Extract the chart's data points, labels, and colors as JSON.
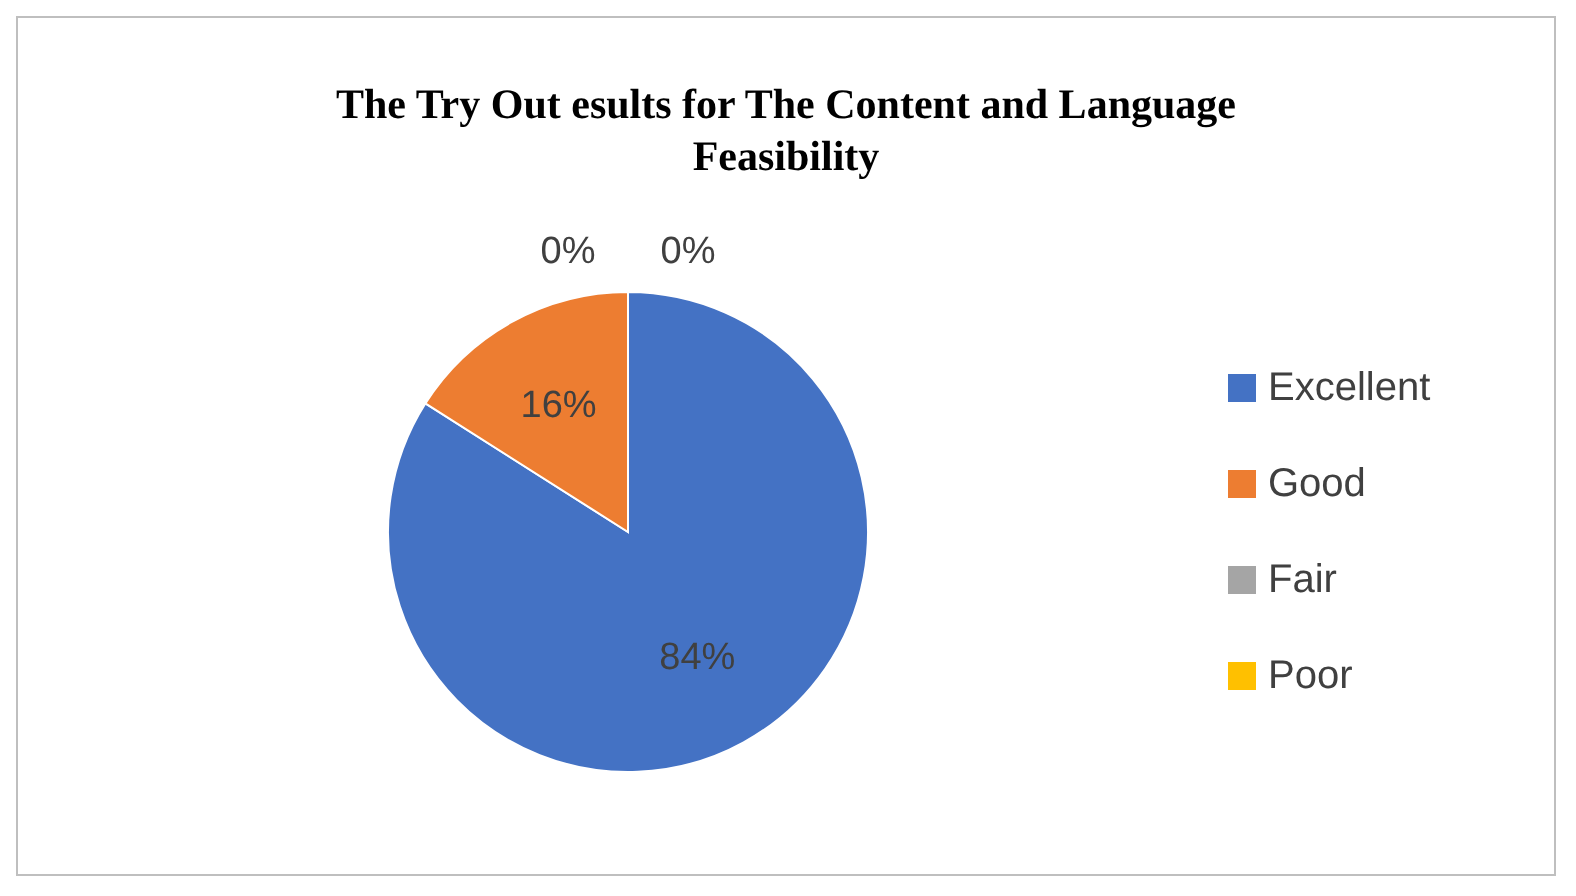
{
  "chart_data": {
    "type": "pie",
    "title": "The Try Out esults for The Content and Language Feasibility",
    "categories": [
      "Excellent",
      "Good",
      "Fair",
      "Poor"
    ],
    "values": [
      84,
      16,
      0,
      0
    ],
    "colors": [
      "#4472c4",
      "#ed7d31",
      "#a5a5a5",
      "#ffc000"
    ],
    "value_labels": [
      "84%",
      "16%",
      "0%",
      "0%"
    ],
    "legend": "right"
  }
}
